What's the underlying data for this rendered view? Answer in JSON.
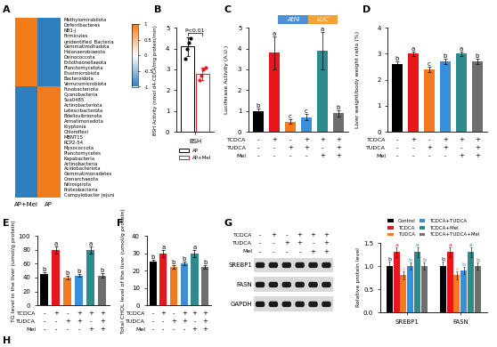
{
  "chart_data": [
    {
      "panel": "A",
      "type": "heatmap",
      "categories": [
        "AP+Mel",
        "AP"
      ],
      "rows": [
        "Methylomirabilota",
        "Deferribacteres",
        "NB1-j",
        "Firmicutes",
        "unidentified_Bacteria",
        "Gemmatimonadota",
        "Halanaerobiaeota",
        "Deinococcota",
        "Entotheonellaeota",
        "Planctomycetota",
        "Elusimicrobiota",
        "Bacteroidota",
        "Verrucomicrobiota",
        "Fusobacteriota",
        "Cyanobacteria",
        "Sva0485",
        "Actinobacteriota",
        "Latescibacterota",
        "Bdellovibrionota",
        "Armatimonadota",
        "Kryptonia",
        "Chloroflexi",
        "MBNT15",
        "RCP2-54",
        "Myxococcota",
        "Planctomycetes",
        "Kapabacteria",
        "Actinobacteria",
        "Acidobacteriota",
        "Gemmatimonadetes",
        "Crenarchaeota",
        "Nitrospirota",
        "Proteobacteria",
        "Campylobacter jejuni"
      ],
      "cells": [
        [
          1,
          -1
        ],
        [
          1,
          -1
        ],
        [
          1,
          -1
        ],
        [
          1,
          -1
        ],
        [
          1,
          -1
        ],
        [
          1,
          -1
        ],
        [
          1,
          -1
        ],
        [
          1,
          -1
        ],
        [
          1,
          -1
        ],
        [
          1,
          -1
        ],
        [
          1,
          -1
        ],
        [
          1,
          -1
        ],
        [
          1,
          -1
        ],
        [
          -1,
          1
        ],
        [
          -1,
          1
        ],
        [
          -1,
          1
        ],
        [
          -1,
          1
        ],
        [
          -1,
          1
        ],
        [
          -1,
          1
        ],
        [
          -1,
          1
        ],
        [
          -1,
          1
        ],
        [
          -1,
          1
        ],
        [
          -1,
          1
        ],
        [
          -1,
          1
        ],
        [
          -1,
          1
        ],
        [
          -1,
          1
        ],
        [
          -1,
          1
        ],
        [
          -1,
          1
        ],
        [
          -1,
          1
        ],
        [
          -1,
          1
        ],
        [
          -1,
          1
        ],
        [
          -1,
          1
        ],
        [
          -1,
          1
        ],
        [
          -1,
          1
        ]
      ],
      "colorbar_range": [
        -1,
        1
      ],
      "colorbar_ticks": [
        -1,
        -0.5,
        0,
        0.5,
        1
      ]
    },
    {
      "panel": "B",
      "type": "dotbar",
      "categories": [
        "BSH"
      ],
      "y_label": "BSH Activity (nmol d4-CDCA/mg protein/min)",
      "annotation": "P<0.01",
      "legend": "lower center",
      "ylim": [
        0,
        5
      ],
      "yticks": [
        0,
        1,
        2,
        3,
        4,
        5
      ],
      "series": [
        {
          "name": "AP",
          "color": "#000000",
          "values": [
            4.1
          ],
          "errors": [
            0.45
          ],
          "points": [
            3.5,
            4.0,
            4.3,
            4.5
          ]
        },
        {
          "name": "AP+Mel",
          "color": "#e8151b",
          "values": [
            2.8
          ],
          "errors": [
            0.3
          ],
          "points": [
            2.5,
            2.7,
            3.0,
            3.1
          ]
        }
      ]
    },
    {
      "panel": "C",
      "type": "bar",
      "categories": [
        null,
        null,
        null,
        null,
        null,
        null
      ],
      "y_label": "Luciferase Activity (A.U.)",
      "construct": [
        "Atf4",
        "LUC"
      ],
      "values": [
        1.0,
        3.8,
        0.5,
        0.7,
        3.9,
        0.9
      ],
      "errors": [
        0.1,
        0.8,
        0.1,
        0.15,
        0.9,
        0.15
      ],
      "letters": [
        "b",
        "a",
        "c",
        "c",
        "a",
        "b"
      ],
      "colors": [
        "#000000",
        "#e8151b",
        "#f47a20",
        "#3a8fd9",
        "#2e8b8b",
        "#6e6e6e"
      ],
      "ylim": [
        0,
        5
      ],
      "yticks": [
        0,
        1,
        2,
        3,
        4,
        5
      ],
      "conditions": [
        {
          "name": "TCDCA",
          "signs": [
            "-",
            "+",
            "-",
            "+",
            "+",
            "+"
          ]
        },
        {
          "name": "TUDCA",
          "signs": [
            "-",
            "-",
            "+",
            "+",
            "-",
            "+"
          ]
        },
        {
          "name": "Mel",
          "signs": [
            "-",
            "-",
            "-",
            "-",
            "+",
            "+"
          ]
        }
      ]
    },
    {
      "panel": "D",
      "type": "bar",
      "categories": [
        null,
        null,
        null,
        null,
        null,
        null
      ],
      "y_label": "Liver weight/body weight ratio (%)",
      "values": [
        2.6,
        3.0,
        2.4,
        2.7,
        3.0,
        2.7
      ],
      "errors": [
        0.1,
        0.1,
        0.1,
        0.1,
        0.1,
        0.1
      ],
      "letters": [
        "b",
        "a",
        "c",
        "b",
        "a",
        "b"
      ],
      "colors": [
        "#000000",
        "#e8151b",
        "#f47a20",
        "#3a8fd9",
        "#2e8b8b",
        "#6e6e6e"
      ],
      "ylim": [
        0,
        4
      ],
      "yticks": [
        0,
        1,
        2,
        3,
        4
      ],
      "conditions": [
        {
          "name": "TCDCA",
          "signs": [
            "-",
            "+",
            "-",
            "+",
            "+",
            "+"
          ]
        },
        {
          "name": "TUDCA",
          "signs": [
            "-",
            "-",
            "+",
            "+",
            "-",
            "+"
          ]
        },
        {
          "name": "Mel",
          "signs": [
            "-",
            "-",
            "-",
            "-",
            "+",
            "+"
          ]
        }
      ]
    },
    {
      "panel": "E",
      "type": "bar",
      "categories": [
        null,
        null,
        null,
        null,
        null,
        null
      ],
      "y_label": "TG level in the liver (umol/g protein)",
      "values": [
        45,
        80,
        40,
        43,
        80,
        43
      ],
      "errors": [
        3,
        5,
        2,
        2,
        5,
        3
      ],
      "letters": [
        "b",
        "a",
        "b",
        "b",
        "a",
        "b"
      ],
      "colors": [
        "#000000",
        "#e8151b",
        "#f47a20",
        "#3a8fd9",
        "#2e8b8b",
        "#6e6e6e"
      ],
      "ylim": [
        0,
        100
      ],
      "yticks": [
        0,
        20,
        40,
        60,
        80,
        100
      ],
      "conditions": [
        {
          "name": "TCDCA",
          "signs": [
            "-",
            "+",
            "-",
            "+",
            "+",
            "+"
          ]
        },
        {
          "name": "TUDCA",
          "signs": [
            "-",
            "-",
            "+",
            "+",
            "-",
            "+"
          ]
        },
        {
          "name": "Mel",
          "signs": [
            "-",
            "-",
            "-",
            "-",
            "+",
            "+"
          ]
        }
      ]
    },
    {
      "panel": "F",
      "type": "bar",
      "categories": [
        null,
        null,
        null,
        null,
        null,
        null
      ],
      "y_label": "Total CHOL level of the liver (umol/g protein)",
      "values": [
        25,
        30,
        22,
        24,
        30,
        22
      ],
      "errors": [
        1.5,
        2,
        1,
        1,
        2,
        1
      ],
      "letters": [
        "b",
        "a",
        "b",
        "b",
        "a",
        "b"
      ],
      "colors": [
        "#000000",
        "#e8151b",
        "#f47a20",
        "#3a8fd9",
        "#2e8b8b",
        "#6e6e6e"
      ],
      "ylim": [
        0,
        40
      ],
      "yticks": [
        0,
        10,
        20,
        30,
        40
      ],
      "conditions": [
        {
          "name": "TCDCA",
          "signs": [
            "-",
            "+",
            "-",
            "+",
            "+",
            "+"
          ]
        },
        {
          "name": "TUDCA",
          "signs": [
            "-",
            "-",
            "+",
            "+",
            "-",
            "+"
          ]
        },
        {
          "name": "Mel",
          "signs": [
            "-",
            "-",
            "-",
            "-",
            "+",
            "+"
          ]
        }
      ]
    },
    {
      "panel": "G",
      "type": "western_blot",
      "bands": [
        "SREBP1",
        "FASN",
        "GAPDH"
      ],
      "conditions": [
        {
          "name": "TCDCA",
          "signs": [
            "-",
            "+",
            "-",
            "+",
            "+",
            "+"
          ]
        },
        {
          "name": "TUDCA",
          "signs": [
            "-",
            "-",
            "+",
            "+",
            "-",
            "+"
          ]
        },
        {
          "name": "Mel",
          "signs": [
            "-",
            "-",
            "-",
            "-",
            "+",
            "+"
          ]
        }
      ]
    },
    {
      "type": "grouped_bar",
      "categories": [
        "SREBP1",
        "FASN"
      ],
      "y_label": "Relative protein level",
      "legend": "upper center",
      "ylim": [
        0,
        1.5
      ],
      "yticks": [
        {
          "value": 0,
          "label": "0.0"
        },
        {
          "value": 0.5,
          "label": "0.5"
        },
        {
          "value": 1.0,
          "label": "1.0"
        },
        {
          "value": 1.5,
          "label": "1.5"
        }
      ],
      "series": [
        {
          "name": "Control",
          "color": "#000000",
          "values": [
            1.0,
            1.0
          ],
          "errors": [
            0.1,
            0.1
          ],
          "letters": [
            "b",
            "b"
          ]
        },
        {
          "name": "TCDCA",
          "color": "#e8151b",
          "values": [
            1.3,
            1.3
          ],
          "errors": [
            0.1,
            0.1
          ],
          "letters": [
            "a",
            "a"
          ]
        },
        {
          "name": "TUDCA",
          "color": "#f47a20",
          "values": [
            0.8,
            0.8
          ],
          "errors": [
            0.08,
            0.08
          ],
          "letters": [
            "c",
            "c"
          ]
        },
        {
          "name": "TCDCA+TUDCA",
          "color": "#3a8fd9",
          "values": [
            1.0,
            0.9
          ],
          "errors": [
            0.08,
            0.08
          ],
          "letters": [
            "b",
            "b"
          ]
        },
        {
          "name": "TCDCA+Mel",
          "color": "#2e8b8b",
          "values": [
            1.3,
            1.3
          ],
          "errors": [
            0.1,
            0.1
          ],
          "letters": [
            "a",
            "a"
          ]
        },
        {
          "name": "TCDCA+TUDCA+Mel",
          "color": "#6e6e6e",
          "values": [
            1.0,
            1.0
          ],
          "errors": [
            0.08,
            0.08
          ],
          "letters": [
            "b",
            "b"
          ]
        }
      ]
    },
    {
      "panel": "H",
      "type": "label"
    }
  ]
}
